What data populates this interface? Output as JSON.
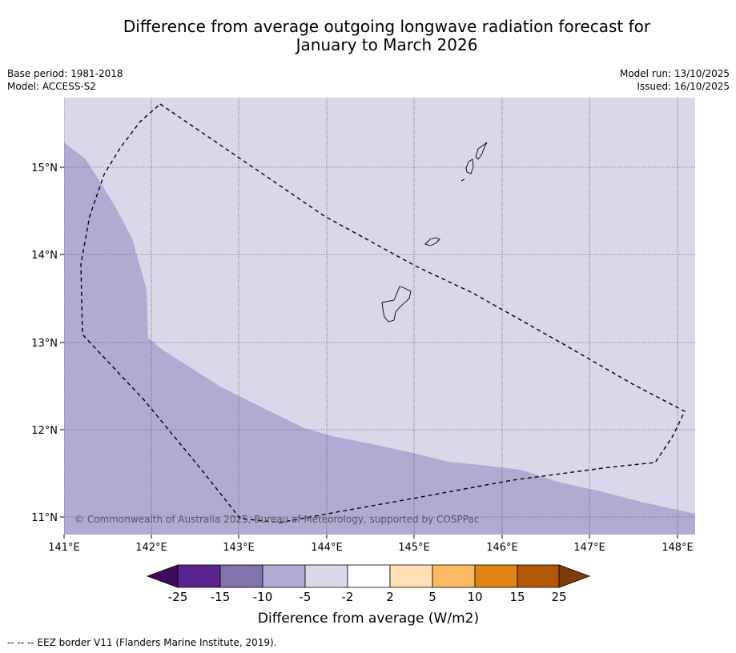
{
  "title": {
    "line1": "Difference from average outgoing longwave radiation forecast for",
    "line2": "January to March 2026"
  },
  "meta": {
    "base_period": "Base period: 1981-2018",
    "model": "Model: ACCESS-S2",
    "model_run": "Model run: 13/10/2025",
    "issued": "Issued: 16/10/2025"
  },
  "map": {
    "copyright": "© Commonwealth of Australia 2025, Bureau of Meteorology, supported by COSPPac",
    "lat_labels": [
      "15°N",
      "14°N",
      "13°N",
      "12°N",
      "11°N"
    ],
    "lon_labels": [
      "141°E",
      "142°E",
      "143°E",
      "144°E",
      "145°E",
      "146°E",
      "147°E",
      "148°E"
    ],
    "colors": {
      "category_minus5_minus2": "#d8d8ea",
      "category_minus10_minus5": "#b1abd3"
    }
  },
  "legend": {
    "title": "Difference from average (W/m2)",
    "tick_labels": [
      "-25",
      "-15",
      "-10",
      "-5",
      "-2",
      "2",
      "5",
      "10",
      "15",
      "25"
    ],
    "colors": [
      "#3f0b5c",
      "#5a2490",
      "#8073ac",
      "#b1abd3",
      "#d8d8ea",
      "#ffffff",
      "#fee0b6",
      "#fdb863",
      "#e08214",
      "#b35806",
      "#7f3b08"
    ]
  },
  "footnote": "--  --  -- EEZ border V11 (Flanders Marine Institute, 2019)."
}
